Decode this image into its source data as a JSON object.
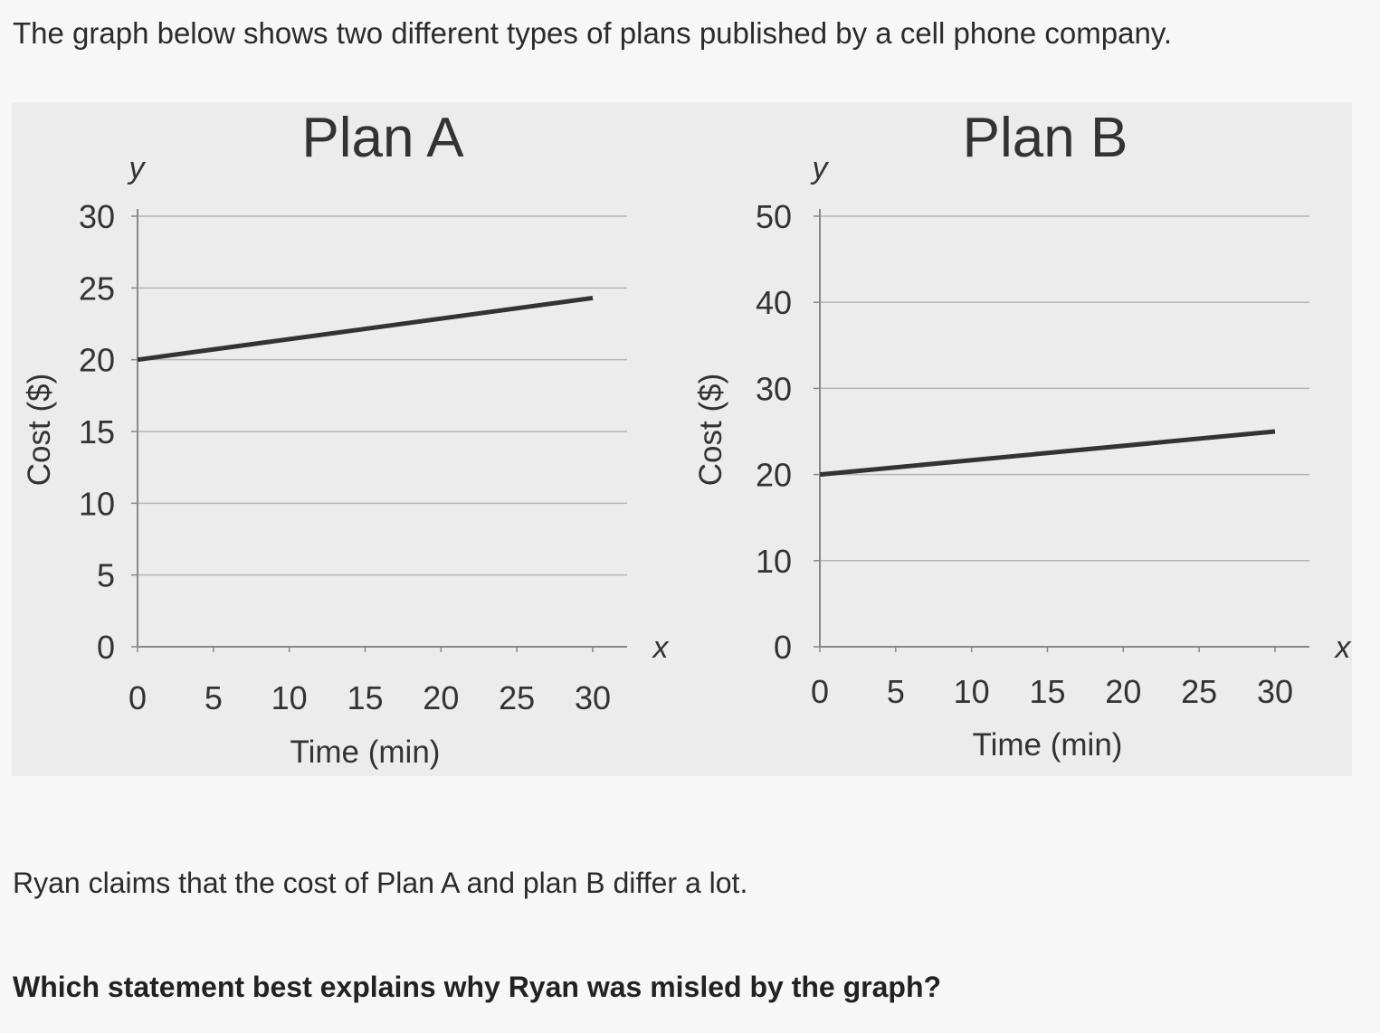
{
  "intro": "The graph below shows two different types of plans published by a cell phone company.",
  "claim": "Ryan claims that the cost of Plan A and plan B differ a lot.",
  "question": "Which statement best explains why Ryan was misled by the graph?",
  "colors": {
    "line": "#333333",
    "grid": "#b5b5b5",
    "axis": "#888888",
    "panel": "#ececec"
  },
  "chart_data": [
    {
      "type": "line",
      "title": "Plan A",
      "xlabel": "Time (min)",
      "ylabel": "Cost ($)",
      "x_axis_letter": "x",
      "y_axis_letter": "y",
      "xlim": [
        0,
        30
      ],
      "ylim": [
        0,
        30
      ],
      "xticks": [
        0,
        5,
        10,
        15,
        20,
        25,
        30
      ],
      "yticks": [
        0,
        5,
        10,
        15,
        20,
        25,
        30
      ],
      "grid": true,
      "series": [
        {
          "x": [
            0,
            30
          ],
          "y": [
            20,
            24.3
          ]
        }
      ]
    },
    {
      "type": "line",
      "title": "Plan  B",
      "xlabel": "Time (min)",
      "ylabel": "Cost ($)",
      "x_axis_letter": "x",
      "y_axis_letter": "y",
      "xlim": [
        0,
        30
      ],
      "ylim": [
        0,
        50
      ],
      "xticks": [
        0,
        5,
        10,
        15,
        20,
        25,
        30
      ],
      "yticks": [
        0,
        10,
        20,
        30,
        40,
        50
      ],
      "grid": true,
      "series": [
        {
          "x": [
            0,
            30
          ],
          "y": [
            20,
            25
          ]
        }
      ]
    }
  ]
}
